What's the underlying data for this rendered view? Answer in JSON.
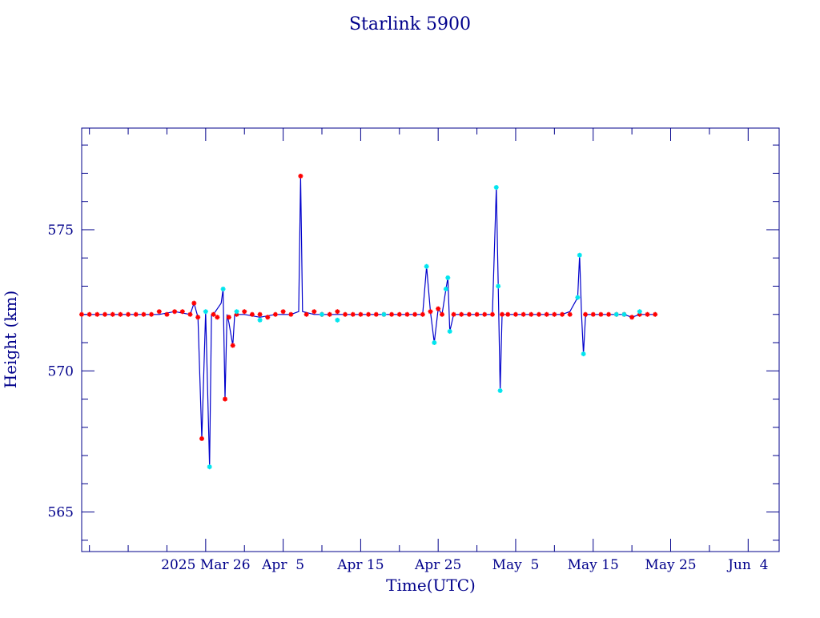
{
  "chart_data": {
    "type": "scatter",
    "title": "Starlink 5900",
    "xlabel": "Time(UTC)",
    "ylabel": "Height (km)",
    "xlim": [
      "2025-03-10",
      "2025-06-08"
    ],
    "ylim": [
      563.6,
      578.6
    ],
    "x_ticks": [
      {
        "date": "2025-03-26",
        "label": "2025 Mar 26"
      },
      {
        "date": "2025-04-05",
        "label": "Apr  5"
      },
      {
        "date": "2025-04-15",
        "label": "Apr 15"
      },
      {
        "date": "2025-04-25",
        "label": "Apr 25"
      },
      {
        "date": "2025-05-05",
        "label": "May  5"
      },
      {
        "date": "2025-05-15",
        "label": "May 15"
      },
      {
        "date": "2025-05-25",
        "label": "May 25"
      },
      {
        "date": "2025-06-04",
        "label": "Jun  4"
      }
    ],
    "y_ticks": [
      565,
      570,
      575
    ],
    "grid": false,
    "legend": "none",
    "colors": {
      "axis": "#00008b",
      "line": "#0000cc",
      "series_a_marker": "#ff0000",
      "series_b_marker": "#00e5ee"
    },
    "line_points": [
      [
        "2025-03-10",
        572.0
      ],
      [
        "2025-03-12",
        572.0
      ],
      [
        "2025-03-14",
        572.0
      ],
      [
        "2025-03-16",
        572.0
      ],
      [
        "2025-03-18",
        572.0
      ],
      [
        "2025-03-20",
        572.0
      ],
      [
        "2025-03-22",
        572.1
      ],
      [
        "2025-03-24",
        572.0
      ],
      [
        "2025-03-24T12:00",
        572.4
      ],
      [
        "2025-03-25",
        571.9
      ],
      [
        "2025-03-25T12:00",
        567.6
      ],
      [
        "2025-03-26",
        572.1
      ],
      [
        "2025-03-26T12:00",
        566.6
      ],
      [
        "2025-03-26T18:00",
        572.0
      ],
      [
        "2025-03-27",
        572.0
      ],
      [
        "2025-03-28",
        572.4
      ],
      [
        "2025-03-28T06:00",
        572.9
      ],
      [
        "2025-03-28T12:00",
        569.0
      ],
      [
        "2025-03-28T18:00",
        572.0
      ],
      [
        "2025-03-29",
        571.7
      ],
      [
        "2025-03-29T12:00",
        570.9
      ],
      [
        "2025-03-29T18:00",
        572.0
      ],
      [
        "2025-03-31",
        572.0
      ],
      [
        "2025-04-02",
        571.9
      ],
      [
        "2025-04-04",
        572.0
      ],
      [
        "2025-04-06",
        572.0
      ],
      [
        "2025-04-07",
        572.1
      ],
      [
        "2025-04-07T06:00",
        576.9
      ],
      [
        "2025-04-07T12:00",
        572.1
      ],
      [
        "2025-04-09",
        572.0
      ],
      [
        "2025-04-11",
        572.0
      ],
      [
        "2025-04-13",
        572.0
      ],
      [
        "2025-04-15",
        572.0
      ],
      [
        "2025-04-17",
        572.0
      ],
      [
        "2025-04-19",
        572.0
      ],
      [
        "2025-04-21",
        572.0
      ],
      [
        "2025-04-23",
        572.0
      ],
      [
        "2025-04-23T12:00",
        573.7
      ],
      [
        "2025-04-24",
        572.1
      ],
      [
        "2025-04-24T12:00",
        571.0
      ],
      [
        "2025-04-25",
        572.2
      ],
      [
        "2025-04-25T12:00",
        572.0
      ],
      [
        "2025-04-26",
        572.9
      ],
      [
        "2025-04-26T06:00",
        573.3
      ],
      [
        "2025-04-26T12:00",
        571.4
      ],
      [
        "2025-04-27",
        572.0
      ],
      [
        "2025-04-29",
        572.0
      ],
      [
        "2025-05-01",
        572.0
      ],
      [
        "2025-05-02",
        572.0
      ],
      [
        "2025-05-02T12:00",
        576.5
      ],
      [
        "2025-05-02T18:00",
        573.0
      ],
      [
        "2025-05-03",
        569.3
      ],
      [
        "2025-05-03T06:00",
        572.0
      ],
      [
        "2025-05-05",
        572.0
      ],
      [
        "2025-05-07",
        572.0
      ],
      [
        "2025-05-09",
        572.0
      ],
      [
        "2025-05-11",
        572.0
      ],
      [
        "2025-05-12",
        572.1
      ],
      [
        "2025-05-13",
        572.6
      ],
      [
        "2025-05-13T06:00",
        574.1
      ],
      [
        "2025-05-13T12:00",
        572.0
      ],
      [
        "2025-05-13T18:00",
        570.6
      ],
      [
        "2025-05-14",
        571.9
      ],
      [
        "2025-05-14T06:00",
        572.0
      ],
      [
        "2025-05-16",
        572.0
      ],
      [
        "2025-05-18",
        572.0
      ],
      [
        "2025-05-19",
        572.0
      ],
      [
        "2025-05-20",
        571.9
      ],
      [
        "2025-05-21",
        572.0
      ],
      [
        "2025-05-22",
        572.0
      ],
      [
        "2025-05-23",
        572.0
      ]
    ],
    "series": [
      {
        "marker_color": "#ff0000",
        "points": [
          [
            "2025-03-10",
            572.0
          ],
          [
            "2025-03-11",
            572.0
          ],
          [
            "2025-03-12",
            572.0
          ],
          [
            "2025-03-13",
            572.0
          ],
          [
            "2025-03-14",
            572.0
          ],
          [
            "2025-03-15",
            572.0
          ],
          [
            "2025-03-16",
            572.0
          ],
          [
            "2025-03-17",
            572.0
          ],
          [
            "2025-03-18",
            572.0
          ],
          [
            "2025-03-19",
            572.0
          ],
          [
            "2025-03-20",
            572.1
          ],
          [
            "2025-03-21",
            572.0
          ],
          [
            "2025-03-22",
            572.1
          ],
          [
            "2025-03-23",
            572.1
          ],
          [
            "2025-03-24",
            572.0
          ],
          [
            "2025-03-24T12:00",
            572.4
          ],
          [
            "2025-03-25",
            571.9
          ],
          [
            "2025-03-25T12:00",
            567.6
          ],
          [
            "2025-03-27",
            572.0
          ],
          [
            "2025-03-27T12:00",
            571.9
          ],
          [
            "2025-03-28T12:00",
            569.0
          ],
          [
            "2025-03-29",
            571.9
          ],
          [
            "2025-03-29T12:00",
            570.9
          ],
          [
            "2025-03-30",
            572.0
          ],
          [
            "2025-03-31",
            572.1
          ],
          [
            "2025-04-01",
            572.0
          ],
          [
            "2025-04-02",
            572.0
          ],
          [
            "2025-04-03",
            571.9
          ],
          [
            "2025-04-04",
            572.0
          ],
          [
            "2025-04-05",
            572.1
          ],
          [
            "2025-04-06",
            572.0
          ],
          [
            "2025-04-07T06:00",
            576.9
          ],
          [
            "2025-04-08",
            572.0
          ],
          [
            "2025-04-09",
            572.1
          ],
          [
            "2025-04-10",
            572.0
          ],
          [
            "2025-04-11",
            572.0
          ],
          [
            "2025-04-12",
            572.1
          ],
          [
            "2025-04-13",
            572.0
          ],
          [
            "2025-04-14",
            572.0
          ],
          [
            "2025-04-15",
            572.0
          ],
          [
            "2025-04-16",
            572.0
          ],
          [
            "2025-04-17",
            572.0
          ],
          [
            "2025-04-18",
            572.0
          ],
          [
            "2025-04-19",
            572.0
          ],
          [
            "2025-04-20",
            572.0
          ],
          [
            "2025-04-21",
            572.0
          ],
          [
            "2025-04-22",
            572.0
          ],
          [
            "2025-04-23",
            572.0
          ],
          [
            "2025-04-24",
            572.1
          ],
          [
            "2025-04-25",
            572.2
          ],
          [
            "2025-04-25T12:00",
            572.0
          ],
          [
            "2025-04-27",
            572.0
          ],
          [
            "2025-04-28",
            572.0
          ],
          [
            "2025-04-29",
            572.0
          ],
          [
            "2025-04-30",
            572.0
          ],
          [
            "2025-05-01",
            572.0
          ],
          [
            "2025-05-02",
            572.0
          ],
          [
            "2025-05-03T06:00",
            572.0
          ],
          [
            "2025-05-04",
            572.0
          ],
          [
            "2025-05-05",
            572.0
          ],
          [
            "2025-05-06",
            572.0
          ],
          [
            "2025-05-07",
            572.0
          ],
          [
            "2025-05-08",
            572.0
          ],
          [
            "2025-05-09",
            572.0
          ],
          [
            "2025-05-10",
            572.0
          ],
          [
            "2025-05-11",
            572.0
          ],
          [
            "2025-05-12",
            572.0
          ],
          [
            "2025-05-14",
            572.0
          ],
          [
            "2025-05-15",
            572.0
          ],
          [
            "2025-05-16",
            572.0
          ],
          [
            "2025-05-17",
            572.0
          ],
          [
            "2025-05-18",
            572.0
          ],
          [
            "2025-05-19",
            572.0
          ],
          [
            "2025-05-20",
            571.9
          ],
          [
            "2025-05-21",
            572.0
          ],
          [
            "2025-05-22",
            572.0
          ],
          [
            "2025-05-23",
            572.0
          ]
        ]
      },
      {
        "marker_color": "#00e5ee",
        "points": [
          [
            "2025-03-26",
            572.1
          ],
          [
            "2025-03-26T12:00",
            566.6
          ],
          [
            "2025-03-28T06:00",
            572.9
          ],
          [
            "2025-03-30",
            572.1
          ],
          [
            "2025-04-02",
            571.8
          ],
          [
            "2025-04-10",
            572.0
          ],
          [
            "2025-04-12",
            571.8
          ],
          [
            "2025-04-18",
            572.0
          ],
          [
            "2025-04-23T12:00",
            573.7
          ],
          [
            "2025-04-24T12:00",
            571.0
          ],
          [
            "2025-04-26",
            572.9
          ],
          [
            "2025-04-26T06:00",
            573.3
          ],
          [
            "2025-04-26T12:00",
            571.4
          ],
          [
            "2025-05-02T12:00",
            576.5
          ],
          [
            "2025-05-02T18:00",
            573.0
          ],
          [
            "2025-05-03",
            569.3
          ],
          [
            "2025-05-13",
            572.6
          ],
          [
            "2025-05-13T06:00",
            574.1
          ],
          [
            "2025-05-13T18:00",
            570.6
          ],
          [
            "2025-05-18",
            572.0
          ],
          [
            "2025-05-19",
            572.0
          ],
          [
            "2025-05-21",
            572.1
          ]
        ]
      }
    ]
  }
}
